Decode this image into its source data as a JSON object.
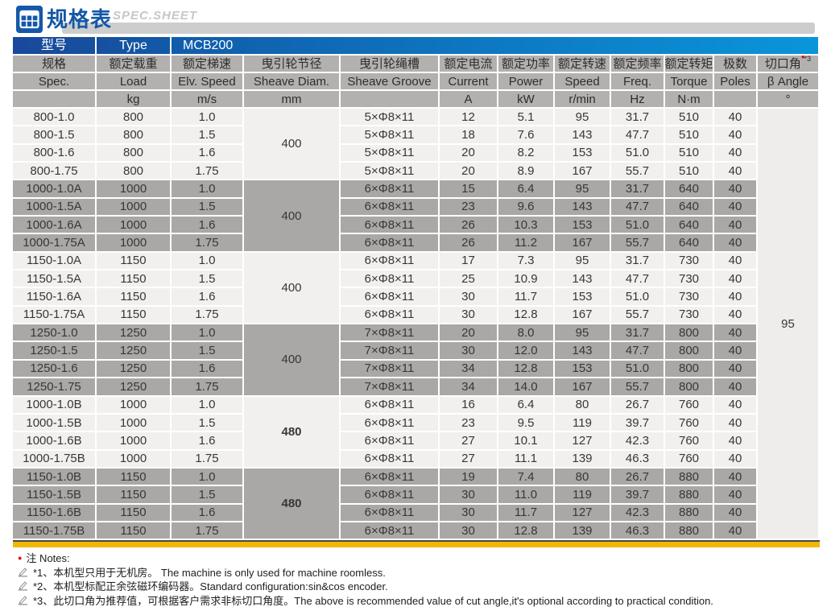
{
  "header": {
    "title_zh": "规格表",
    "title_en": "SPEC.SHEET",
    "icon": "spreadsheet-grid-icon"
  },
  "colors": {
    "brand_blue_dark": "#1a489c",
    "brand_blue_light": "#0a95da",
    "title_blue": "#1457a6",
    "header_gray": "#b2b1af",
    "row_light": "#f1f0ee",
    "row_dark": "#a9a8a6",
    "accent_yellow": "#f2b705",
    "note_red": "#e60012"
  },
  "table": {
    "model_row": {
      "label_zh": "型号",
      "label_en": "Type",
      "model": "MCB200"
    },
    "columns": [
      {
        "key": "spec",
        "zh": "规格",
        "en": "Spec.",
        "unit": ""
      },
      {
        "key": "load",
        "zh": "额定载重",
        "en": "Load",
        "unit": "kg"
      },
      {
        "key": "speed-ms",
        "zh": "额定梯速",
        "en": "Elv. Speed",
        "unit": "m/s"
      },
      {
        "key": "diam",
        "zh": "曳引轮节径",
        "en": "Sheave Diam.",
        "unit": "mm"
      },
      {
        "key": "groove",
        "zh": "曳引轮绳槽",
        "en": "Sheave Groove",
        "unit": ""
      },
      {
        "key": "current",
        "zh": "额定电流",
        "en": "Current",
        "unit": "A"
      },
      {
        "key": "power",
        "zh": "额定功率",
        "en": "Power",
        "unit": "kW"
      },
      {
        "key": "speed-rpm",
        "zh": "额定转速",
        "en": "Speed",
        "unit": "r/min"
      },
      {
        "key": "freq",
        "zh": "额定频率",
        "en": "Freq.",
        "unit": "Hz"
      },
      {
        "key": "torque",
        "zh": "额定转矩",
        "en": "Torque",
        "unit": "N·m"
      },
      {
        "key": "poles",
        "zh": "极数",
        "en": "Poles",
        "unit": ""
      },
      {
        "key": "beta",
        "zh": "切口角",
        "sup": "*3",
        "en": "β Angle",
        "unit": "°"
      }
    ],
    "groups": [
      {
        "shade": "light",
        "sheave_diam": "400",
        "diam_bold": false,
        "rows": [
          {
            "spec": "800-1.0",
            "load": "800",
            "speed_ms": "1.0",
            "groove": "5×Φ8×11",
            "current": "12",
            "power": "5.1",
            "speed_rpm": "95",
            "freq": "31.7",
            "torque": "510",
            "poles": "40"
          },
          {
            "spec": "800-1.5",
            "load": "800",
            "speed_ms": "1.5",
            "groove": "5×Φ8×11",
            "current": "18",
            "power": "7.6",
            "speed_rpm": "143",
            "freq": "47.7",
            "torque": "510",
            "poles": "40"
          },
          {
            "spec": "800-1.6",
            "load": "800",
            "speed_ms": "1.6",
            "groove": "5×Φ8×11",
            "current": "20",
            "power": "8.2",
            "speed_rpm": "153",
            "freq": "51.0",
            "torque": "510",
            "poles": "40"
          },
          {
            "spec": "800-1.75",
            "load": "800",
            "speed_ms": "1.75",
            "groove": "5×Φ8×11",
            "current": "20",
            "power": "8.9",
            "speed_rpm": "167",
            "freq": "55.7",
            "torque": "510",
            "poles": "40"
          }
        ]
      },
      {
        "shade": "dark",
        "sheave_diam": "400",
        "diam_bold": false,
        "rows": [
          {
            "spec": "1000-1.0A",
            "load": "1000",
            "speed_ms": "1.0",
            "groove": "6×Φ8×11",
            "current": "15",
            "power": "6.4",
            "speed_rpm": "95",
            "freq": "31.7",
            "torque": "640",
            "poles": "40"
          },
          {
            "spec": "1000-1.5A",
            "load": "1000",
            "speed_ms": "1.5",
            "groove": "6×Φ8×11",
            "current": "23",
            "power": "9.6",
            "speed_rpm": "143",
            "freq": "47.7",
            "torque": "640",
            "poles": "40"
          },
          {
            "spec": "1000-1.6A",
            "load": "1000",
            "speed_ms": "1.6",
            "groove": "6×Φ8×11",
            "current": "26",
            "power": "10.3",
            "speed_rpm": "153",
            "freq": "51.0",
            "torque": "640",
            "poles": "40"
          },
          {
            "spec": "1000-1.75A",
            "load": "1000",
            "speed_ms": "1.75",
            "groove": "6×Φ8×11",
            "current": "26",
            "power": "11.2",
            "speed_rpm": "167",
            "freq": "55.7",
            "torque": "640",
            "poles": "40"
          }
        ]
      },
      {
        "shade": "light",
        "sheave_diam": "400",
        "diam_bold": false,
        "rows": [
          {
            "spec": "1150-1.0A",
            "load": "1150",
            "speed_ms": "1.0",
            "groove": "6×Φ8×11",
            "current": "17",
            "power": "7.3",
            "speed_rpm": "95",
            "freq": "31.7",
            "torque": "730",
            "poles": "40"
          },
          {
            "spec": "1150-1.5A",
            "load": "1150",
            "speed_ms": "1.5",
            "groove": "6×Φ8×11",
            "current": "25",
            "power": "10.9",
            "speed_rpm": "143",
            "freq": "47.7",
            "torque": "730",
            "poles": "40"
          },
          {
            "spec": "1150-1.6A",
            "load": "1150",
            "speed_ms": "1.6",
            "groove": "6×Φ8×11",
            "current": "30",
            "power": "11.7",
            "speed_rpm": "153",
            "freq": "51.0",
            "torque": "730",
            "poles": "40"
          },
          {
            "spec": "1150-1.75A",
            "load": "1150",
            "speed_ms": "1.75",
            "groove": "6×Φ8×11",
            "current": "30",
            "power": "12.8",
            "speed_rpm": "167",
            "freq": "55.7",
            "torque": "730",
            "poles": "40"
          }
        ]
      },
      {
        "shade": "dark",
        "sheave_diam": "400",
        "diam_bold": false,
        "rows": [
          {
            "spec": "1250-1.0",
            "load": "1250",
            "speed_ms": "1.0",
            "groove": "7×Φ8×11",
            "current": "20",
            "power": "8.0",
            "speed_rpm": "95",
            "freq": "31.7",
            "torque": "800",
            "poles": "40"
          },
          {
            "spec": "1250-1.5",
            "load": "1250",
            "speed_ms": "1.5",
            "groove": "7×Φ8×11",
            "current": "30",
            "power": "12.0",
            "speed_rpm": "143",
            "freq": "47.7",
            "torque": "800",
            "poles": "40"
          },
          {
            "spec": "1250-1.6",
            "load": "1250",
            "speed_ms": "1.6",
            "groove": "7×Φ8×11",
            "current": "34",
            "power": "12.8",
            "speed_rpm": "153",
            "freq": "51.0",
            "torque": "800",
            "poles": "40"
          },
          {
            "spec": "1250-1.75",
            "load": "1250",
            "speed_ms": "1.75",
            "groove": "7×Φ8×11",
            "current": "34",
            "power": "14.0",
            "speed_rpm": "167",
            "freq": "55.7",
            "torque": "800",
            "poles": "40"
          }
        ]
      },
      {
        "shade": "light",
        "sheave_diam": "480",
        "diam_bold": true,
        "rows": [
          {
            "spec": "1000-1.0B",
            "load": "1000",
            "speed_ms": "1.0",
            "groove": "6×Φ8×11",
            "current": "16",
            "power": "6.4",
            "speed_rpm": "80",
            "freq": "26.7",
            "torque": "760",
            "poles": "40"
          },
          {
            "spec": "1000-1.5B",
            "load": "1000",
            "speed_ms": "1.5",
            "groove": "6×Φ8×11",
            "current": "23",
            "power": "9.5",
            "speed_rpm": "119",
            "freq": "39.7",
            "torque": "760",
            "poles": "40"
          },
          {
            "spec": "1000-1.6B",
            "load": "1000",
            "speed_ms": "1.6",
            "groove": "6×Φ8×11",
            "current": "27",
            "power": "10.1",
            "speed_rpm": "127",
            "freq": "42.3",
            "torque": "760",
            "poles": "40"
          },
          {
            "spec": "1000-1.75B",
            "load": "1000",
            "speed_ms": "1.75",
            "groove": "6×Φ8×11",
            "current": "27",
            "power": "11.1",
            "speed_rpm": "139",
            "freq": "46.3",
            "torque": "760",
            "poles": "40"
          }
        ]
      },
      {
        "shade": "dark",
        "sheave_diam": "480",
        "diam_bold": true,
        "rows": [
          {
            "spec": "1150-1.0B",
            "load": "1150",
            "speed_ms": "1.0",
            "groove": "6×Φ8×11",
            "current": "19",
            "power": "7.4",
            "speed_rpm": "80",
            "freq": "26.7",
            "torque": "880",
            "poles": "40"
          },
          {
            "spec": "1150-1.5B",
            "load": "1150",
            "speed_ms": "1.5",
            "groove": "6×Φ8×11",
            "current": "30",
            "power": "11.0",
            "speed_rpm": "119",
            "freq": "39.7",
            "torque": "880",
            "poles": "40"
          },
          {
            "spec": "1150-1.6B",
            "load": "1150",
            "speed_ms": "1.6",
            "groove": "6×Φ8×11",
            "current": "30",
            "power": "11.7",
            "speed_rpm": "127",
            "freq": "42.3",
            "torque": "880",
            "poles": "40"
          },
          {
            "spec": "1150-1.75B",
            "load": "1150",
            "speed_ms": "1.75",
            "groove": "6×Φ8×11",
            "current": "30",
            "power": "12.8",
            "speed_rpm": "139",
            "freq": "46.3",
            "torque": "880",
            "poles": "40"
          }
        ]
      }
    ],
    "beta_angle": "95"
  },
  "notes": {
    "bullet": "●",
    "heading": "注 Notes:",
    "items": [
      "*1、本机型只用于无机房。 The machine is only used for machine roomless.",
      "*2、本机型标配正余弦磁环编码器。Standard configuration:sin&cos encoder.",
      "*3、此切口角为推荐值，可根据客户需求非标切口角度。The above is recommended value of cut angle,it's optional according to practical condition."
    ]
  }
}
